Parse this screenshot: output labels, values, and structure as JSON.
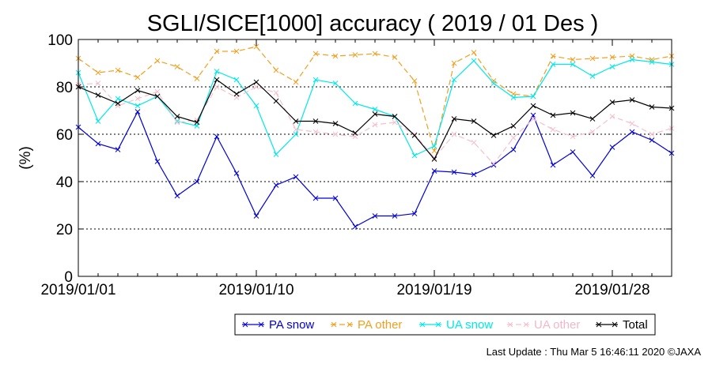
{
  "chart_data": {
    "type": "line",
    "title": "SGLI/SICE[1000] accuracy ( 2019 / 01 Des )",
    "ylabel": "(%)",
    "xlabel": "",
    "ylim": [
      0,
      100
    ],
    "yticks": [
      0,
      20,
      40,
      60,
      80,
      100
    ],
    "grid": "horizontal dotted at 20, 40, 60, 80",
    "x": [
      "2019/01/01",
      "2019/01/02",
      "2019/01/03",
      "2019/01/04",
      "2019/01/05",
      "2019/01/06",
      "2019/01/07",
      "2019/01/08",
      "2019/01/09",
      "2019/01/10",
      "2019/01/11",
      "2019/01/12",
      "2019/01/13",
      "2019/01/14",
      "2019/01/15",
      "2019/01/16",
      "2019/01/17",
      "2019/01/18",
      "2019/01/19",
      "2019/01/20",
      "2019/01/21",
      "2019/01/22",
      "2019/01/23",
      "2019/01/24",
      "2019/01/25",
      "2019/01/26",
      "2019/01/27",
      "2019/01/28",
      "2019/01/29",
      "2019/01/30",
      "2019/01/31"
    ],
    "xtick_labels": [
      "2019/01/01",
      "2019/01/10",
      "2019/01/19",
      "2019/01/28"
    ],
    "xtick_positions": [
      "2019/01/01",
      "2019/01/10",
      "2019/01/19",
      "2019/01/28"
    ],
    "legend_position": "bottom-center",
    "series": [
      {
        "name": "PA snow",
        "color": "#0000d8",
        "dash": "solid",
        "values": [
          63,
          56,
          53.5,
          69.5,
          48.5,
          34,
          40,
          59,
          43.5,
          25.5,
          38.5,
          42,
          33,
          33,
          21,
          25.5,
          25.5,
          26.5,
          44.5,
          44,
          43,
          47,
          53.5,
          68,
          47,
          52.5,
          42.5,
          54.5,
          61,
          57.5,
          52
        ]
      },
      {
        "name": "PA other",
        "color": "#f0a020",
        "dash": "dashed",
        "values": [
          92,
          86,
          87,
          84,
          91,
          88.5,
          83.5,
          95,
          95,
          97,
          87,
          82,
          94,
          93,
          93.5,
          94,
          92.5,
          82.5,
          53,
          90,
          94.5,
          82.5,
          77,
          76,
          93,
          91.5,
          92,
          92.5,
          93,
          91.5,
          93
        ]
      },
      {
        "name": "UA snow",
        "color": "#00e8e8",
        "dash": "solid",
        "values": [
          86,
          65.5,
          75,
          72,
          76,
          65.5,
          63.5,
          86.5,
          83,
          72,
          51.5,
          60,
          83,
          81.5,
          73,
          70.5,
          67.5,
          51,
          55,
          83,
          91,
          81.5,
          75.5,
          76,
          89.5,
          89.5,
          84.5,
          88.5,
          91.5,
          90.5,
          89.5
        ]
      },
      {
        "name": "UA other",
        "color": "#f5c0cc",
        "dash": "dashed",
        "values": [
          81,
          81.5,
          72,
          75,
          78,
          65,
          66,
          80,
          75.5,
          80,
          77.5,
          62,
          61,
          60,
          59,
          64,
          65,
          60,
          50,
          60,
          56.5,
          47.5,
          58.5,
          66.5,
          62,
          59,
          61,
          67.5,
          64.5,
          60,
          62.5
        ]
      },
      {
        "name": "Total",
        "color": "#000000",
        "dash": "solid",
        "values": [
          80,
          76.5,
          73,
          78.5,
          76,
          67.5,
          65,
          83,
          77,
          82,
          74,
          65.5,
          65.5,
          64.5,
          60.5,
          68.5,
          67.5,
          59.5,
          49.5,
          66.5,
          65.5,
          59.5,
          63.5,
          72,
          68,
          69,
          66.5,
          73.5,
          74.5,
          71.5,
          71
        ]
      }
    ]
  },
  "footer": {
    "last_update": "Last Update : Thu Mar  5 16:46:11 2020  ©JAXA"
  }
}
